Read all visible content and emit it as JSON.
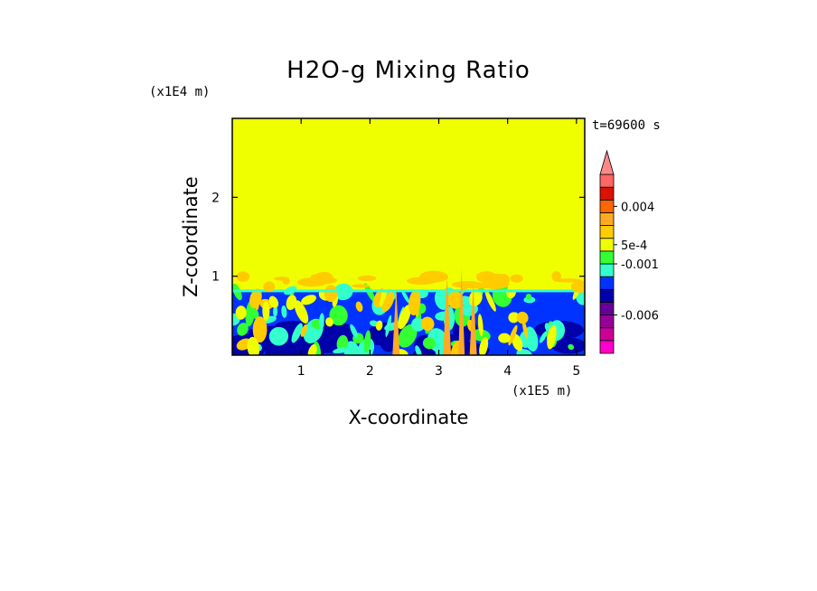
{
  "chart_data": {
    "type": "heatmap",
    "title": "H2O-g Mixing Ratio",
    "xlabel": "X-coordinate",
    "ylabel": "Z-coordinate",
    "x_unit": "(x1E5 m)",
    "y_unit": "(x1E4 m)",
    "time_label": "t=69600 s",
    "xlim": [
      0,
      5.12
    ],
    "ylim": [
      0,
      3.0
    ],
    "x_ticks": [
      1,
      2,
      3,
      4,
      5
    ],
    "x_tick_labels": [
      "1",
      "2",
      "3",
      "4",
      "5"
    ],
    "y_ticks": [
      1,
      2
    ],
    "y_tick_labels": [
      "1",
      "2"
    ],
    "colorbar": {
      "extend": "max",
      "colors": [
        "#ff00cc",
        "#cc0099",
        "#990099",
        "#660099",
        "#0000aa",
        "#0033ff",
        "#33ffcc",
        "#33ff33",
        "#f0ff00",
        "#ffcc00",
        "#ffaa22",
        "#ff6600",
        "#dd1100",
        "#ff6666"
      ],
      "labeled_levels": [
        {
          "index": 3,
          "label": "-0.006"
        },
        {
          "index": 7,
          "label": "-0.001"
        },
        {
          "index": 8.5,
          "label": "5e-4"
        },
        {
          "index": 11.5,
          "label": "0.004"
        }
      ],
      "extend_color": "#ff8888"
    },
    "regions": {
      "upper_value_color": "#f0ff00",
      "boundary_height": 0.82,
      "lower_dominant_color": "#0033ff",
      "mixed_layer_colors": [
        "#0033ff",
        "#0000aa",
        "#33ffcc",
        "#33ff33",
        "#f0ff00",
        "#ffcc00",
        "#ffaa22"
      ]
    }
  }
}
